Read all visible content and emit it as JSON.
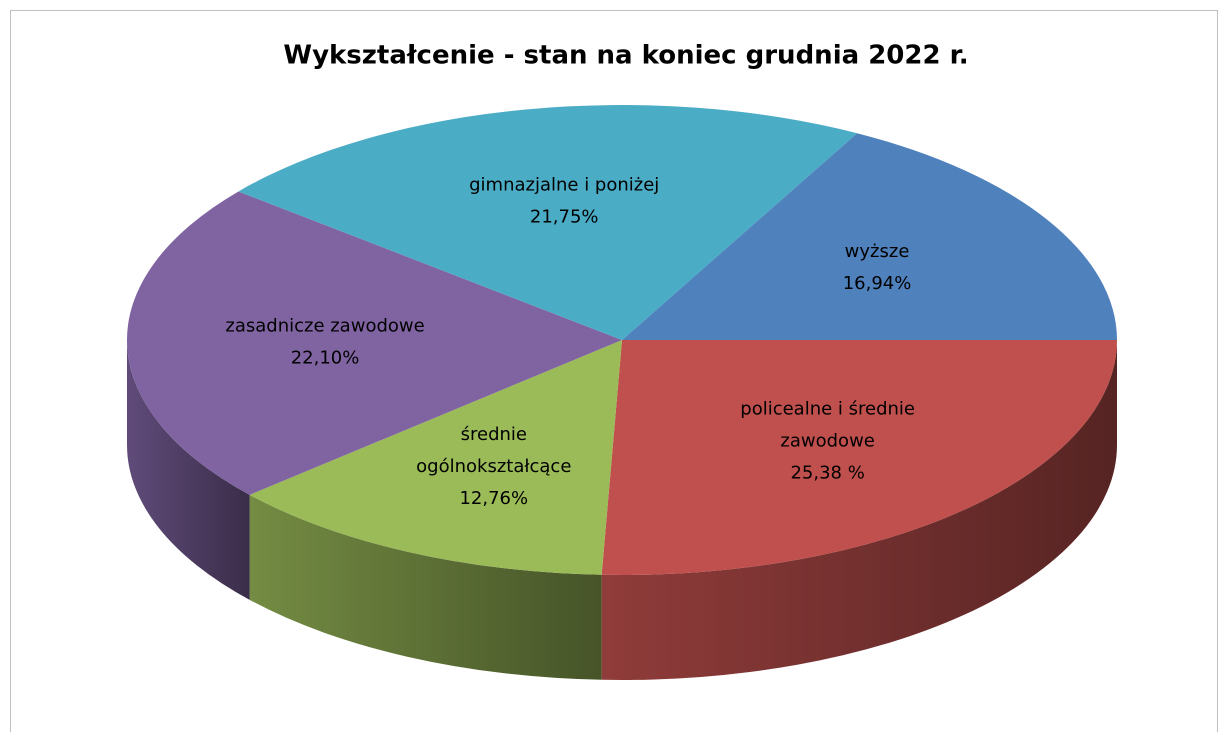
{
  "chart_data": {
    "type": "pie",
    "title": "Wykształcenie - stan na koniec grudnia 2022 r.",
    "categories": [
      "wyższe",
      "policealne i średnie\nzawodowe",
      "średnie\nogólnokształcące",
      "zasadnicze zawodowe",
      "gimnazjalne i poniżej"
    ],
    "values": [
      16.94,
      25.38,
      12.76,
      22.1,
      21.75
    ],
    "value_labels": [
      "16,94%",
      "25,38 %",
      "12,76%",
      "22,10%",
      "21,75%"
    ],
    "colors": [
      "#4f81bd",
      "#c0504d",
      "#9bbb59",
      "#8064a2",
      "#4bacc6"
    ],
    "three_d": true
  }
}
